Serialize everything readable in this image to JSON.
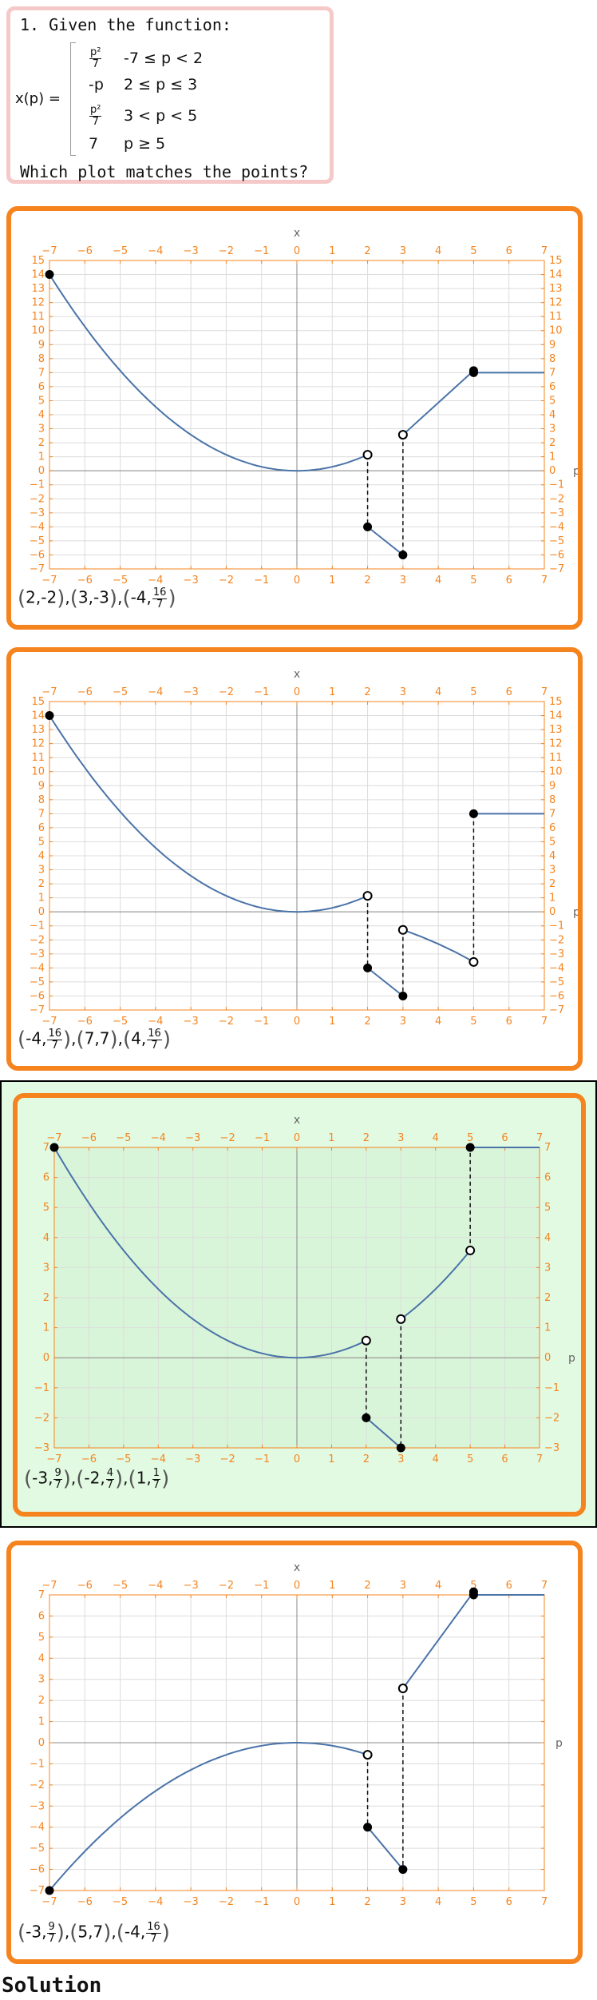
{
  "question": {
    "title": "1. Given the function:",
    "lhs": "x(p) =",
    "cases": [
      {
        "expr_num": "p²",
        "expr_den": "7",
        "cond": "-7 ≤ p < 2"
      },
      {
        "expr": "-p",
        "cond": "2 ≤ p ≤ 3"
      },
      {
        "expr_num": "p²",
        "expr_den": "7",
        "cond": "3 < p < 5"
      },
      {
        "expr": "7",
        "cond": "p ≥ 5"
      }
    ],
    "prompt": "Which plot matches the points?"
  },
  "options": [
    {
      "id": "a",
      "correct": false,
      "answer_points": [
        {
          "x": "2",
          "y": "-2"
        },
        {
          "x": "3",
          "y": "-3"
        },
        {
          "x": "-4",
          "y_num": "16",
          "y_den": "7"
        }
      ],
      "chart_data": {
        "type": "line",
        "xlabel": "p",
        "ylabel": "x",
        "xlim": [
          -7,
          7
        ],
        "ylim": [
          -7,
          15
        ],
        "x_ticks": [
          -7,
          -6,
          -5,
          -4,
          -3,
          -2,
          -1,
          0,
          1,
          2,
          3,
          4,
          5,
          6,
          7
        ],
        "y_ticks": [
          -7,
          -6,
          -5,
          -4,
          -3,
          -2,
          -1,
          0,
          1,
          2,
          3,
          4,
          5,
          6,
          7,
          8,
          9,
          10,
          11,
          12,
          13,
          14,
          15
        ],
        "y_ticks_right": true,
        "series": [
          {
            "kind": "parabola",
            "a": 0.2857,
            "from": -7,
            "to": 2
          },
          {
            "kind": "segment",
            "points": [
              [
                2,
                -4
              ],
              [
                3,
                -6
              ]
            ]
          },
          {
            "kind": "segment",
            "points": [
              [
                3,
                2.571
              ],
              [
                5,
                7.143
              ]
            ]
          },
          {
            "kind": "segment",
            "points": [
              [
                5,
                7
              ],
              [
                7,
                7
              ]
            ]
          }
        ],
        "filled_points": [
          [
            -7,
            14
          ],
          [
            2,
            -4
          ],
          [
            3,
            -6
          ],
          [
            5,
            7.143
          ],
          [
            5,
            7
          ]
        ],
        "open_points": [
          [
            2,
            1.143
          ],
          [
            3,
            2.571
          ]
        ],
        "dashed": [
          [
            [
              2,
              1.143
            ],
            [
              2,
              -4
            ]
          ],
          [
            [
              3,
              2.571
            ],
            [
              3,
              -6
            ]
          ]
        ],
        "line_color": "#4a73a8",
        "axis_color": "#f5841f"
      }
    },
    {
      "id": "b",
      "correct": false,
      "answer_points": [
        {
          "x": "-4",
          "y_num": "16",
          "y_den": "7"
        },
        {
          "x": "7",
          "y": "7"
        },
        {
          "x": "4",
          "y_num": "16",
          "y_den": "7"
        }
      ],
      "chart_data": {
        "type": "line",
        "xlabel": "p",
        "ylabel": "x",
        "xlim": [
          -7,
          7
        ],
        "ylim": [
          -7,
          15
        ],
        "x_ticks": [
          -7,
          -6,
          -5,
          -4,
          -3,
          -2,
          -1,
          0,
          1,
          2,
          3,
          4,
          5,
          6,
          7
        ],
        "y_ticks": [
          -7,
          -6,
          -5,
          -4,
          -3,
          -2,
          -1,
          0,
          1,
          2,
          3,
          4,
          5,
          6,
          7,
          8,
          9,
          10,
          11,
          12,
          13,
          14,
          15
        ],
        "y_ticks_right": true,
        "series": [
          {
            "kind": "parabola",
            "a": 0.2857,
            "from": -7,
            "to": 2
          },
          {
            "kind": "segment",
            "points": [
              [
                2,
                -4
              ],
              [
                3,
                -6
              ]
            ]
          },
          {
            "kind": "curve",
            "points": [
              [
                3,
                -1.286
              ],
              [
                3.5,
                -1.75
              ],
              [
                4,
                -2.286
              ],
              [
                4.5,
                -2.893
              ],
              [
                5,
                -3.571
              ]
            ]
          },
          {
            "kind": "segment",
            "points": [
              [
                5,
                7
              ],
              [
                7,
                7
              ]
            ]
          }
        ],
        "filled_points": [
          [
            -7,
            14
          ],
          [
            2,
            -4
          ],
          [
            3,
            -6
          ],
          [
            5,
            7
          ]
        ],
        "open_points": [
          [
            2,
            1.143
          ],
          [
            3,
            -1.286
          ],
          [
            5,
            -3.571
          ]
        ],
        "dashed": [
          [
            [
              2,
              1.143
            ],
            [
              2,
              -4
            ]
          ],
          [
            [
              3,
              -1.286
            ],
            [
              3,
              -6
            ]
          ],
          [
            [
              5,
              -3.571
            ],
            [
              5,
              7
            ]
          ]
        ],
        "line_color": "#4a73a8",
        "axis_color": "#f5841f"
      }
    },
    {
      "id": "c",
      "correct": true,
      "answer_points": [
        {
          "x": "-3",
          "y_num": "9",
          "y_den": "7"
        },
        {
          "x": "-2",
          "y_num": "4",
          "y_den": "7"
        },
        {
          "x": "1",
          "y_num": "1",
          "y_den": "7"
        }
      ],
      "chart_data": {
        "type": "line",
        "xlabel": "p",
        "ylabel": "x",
        "xlim": [
          -7,
          7
        ],
        "ylim": [
          -3,
          7
        ],
        "x_ticks": [
          -7,
          -6,
          -5,
          -4,
          -3,
          -2,
          -1,
          0,
          1,
          2,
          3,
          4,
          5,
          6,
          7
        ],
        "y_ticks": [
          -3,
          -2,
          -1,
          0,
          1,
          2,
          3,
          4,
          5,
          6,
          7
        ],
        "y_ticks_right": true,
        "series": [
          {
            "kind": "parabola",
            "a": 0.142857,
            "from": -7,
            "to": 2
          },
          {
            "kind": "segment",
            "points": [
              [
                2,
                -2
              ],
              [
                3,
                -3
              ]
            ]
          },
          {
            "kind": "parabola",
            "a": 0.142857,
            "from": 3,
            "to": 5
          },
          {
            "kind": "segment",
            "points": [
              [
                5,
                7
              ],
              [
                7,
                7
              ]
            ]
          }
        ],
        "filled_points": [
          [
            -7,
            7
          ],
          [
            2,
            -2
          ],
          [
            3,
            -3
          ],
          [
            5,
            7
          ]
        ],
        "open_points": [
          [
            2,
            0.571
          ],
          [
            3,
            1.286
          ],
          [
            5,
            3.571
          ]
        ],
        "dashed": [
          [
            [
              2,
              0.571
            ],
            [
              2,
              -2
            ]
          ],
          [
            [
              3,
              1.286
            ],
            [
              3,
              -3
            ]
          ],
          [
            [
              5,
              3.571
            ],
            [
              5,
              7
            ]
          ]
        ],
        "line_color": "#4a73a8",
        "axis_color": "#f5841f"
      }
    },
    {
      "id": "d",
      "correct": false,
      "answer_points": [
        {
          "x": "-3",
          "y_num": "9",
          "y_den": "7"
        },
        {
          "x": "5",
          "y": "7"
        },
        {
          "x": "-4",
          "y_num": "16",
          "y_den": "7"
        }
      ],
      "chart_data": {
        "type": "line",
        "xlabel": "p",
        "ylabel": "x",
        "xlim": [
          -7,
          7
        ],
        "ylim": [
          -7,
          7
        ],
        "x_ticks": [
          -7,
          -6,
          -5,
          -4,
          -3,
          -2,
          -1,
          0,
          1,
          2,
          3,
          4,
          5,
          6,
          7
        ],
        "y_ticks": [
          -7,
          -6,
          -5,
          -4,
          -3,
          -2,
          -1,
          0,
          1,
          2,
          3,
          4,
          5,
          6,
          7
        ],
        "y_ticks_right": false,
        "series": [
          {
            "kind": "parabola",
            "a": -0.142857,
            "from": -7,
            "to": 2
          },
          {
            "kind": "segment",
            "points": [
              [
                2,
                -4
              ],
              [
                3,
                -6
              ]
            ]
          },
          {
            "kind": "segment",
            "points": [
              [
                3,
                2.571
              ],
              [
                5,
                7.143
              ]
            ]
          },
          {
            "kind": "segment",
            "points": [
              [
                5,
                7
              ],
              [
                7,
                7
              ]
            ]
          }
        ],
        "filled_points": [
          [
            -7,
            -7
          ],
          [
            2,
            -4
          ],
          [
            3,
            -6
          ],
          [
            5,
            7.143
          ],
          [
            5,
            7
          ]
        ],
        "open_points": [
          [
            2,
            -0.571
          ],
          [
            3,
            2.571
          ]
        ],
        "dashed": [
          [
            [
              2,
              -0.571
            ],
            [
              2,
              -4
            ]
          ],
          [
            [
              3,
              2.571
            ],
            [
              3,
              -6
            ]
          ]
        ],
        "line_color": "#4a73a8",
        "axis_color": "#f5841f"
      }
    }
  ],
  "solution_label": "Solution"
}
